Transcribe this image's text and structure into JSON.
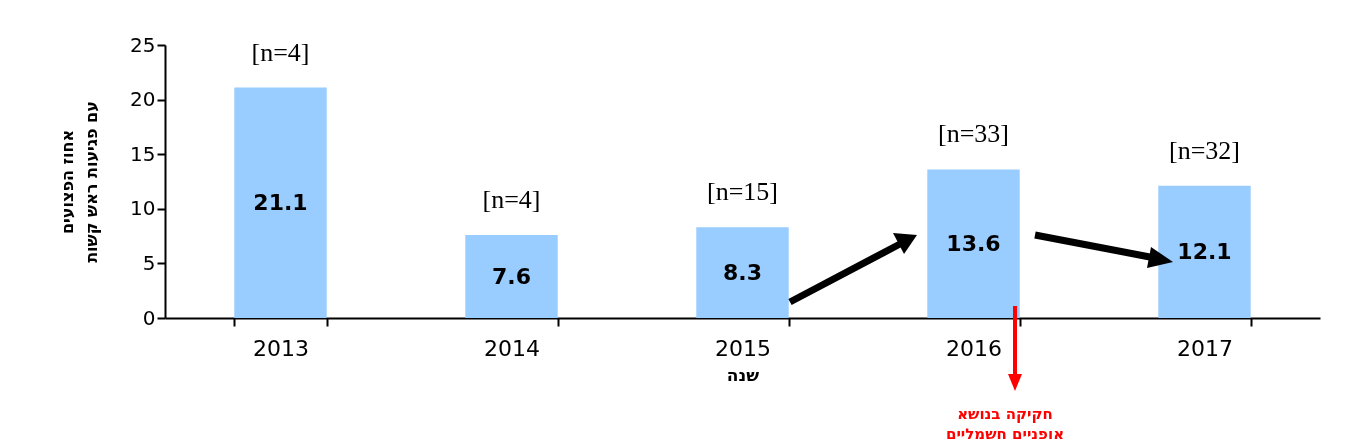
{
  "chart_data": {
    "type": "bar",
    "xlabel": "שנה",
    "ylabel": "אחוז הפצועים\nעם פגיעות ראש קשות",
    "categories": [
      "2013",
      "2014",
      "2015",
      "2016",
      "2017"
    ],
    "values": [
      21.1,
      7.6,
      8.3,
      13.6,
      12.1
    ],
    "color": "#99ccff",
    "data_labels": true,
    "ylim": [
      0,
      25
    ],
    "yticks": [
      0,
      5,
      10,
      15,
      20,
      25
    ],
    "grid": false,
    "annotations": [
      "[n=4]",
      "[n=4]",
      "[n=15]",
      "[n=33]",
      "[n=32]",
      "חקיקה בנושא\nאופניים חשמליים"
    ]
  }
}
